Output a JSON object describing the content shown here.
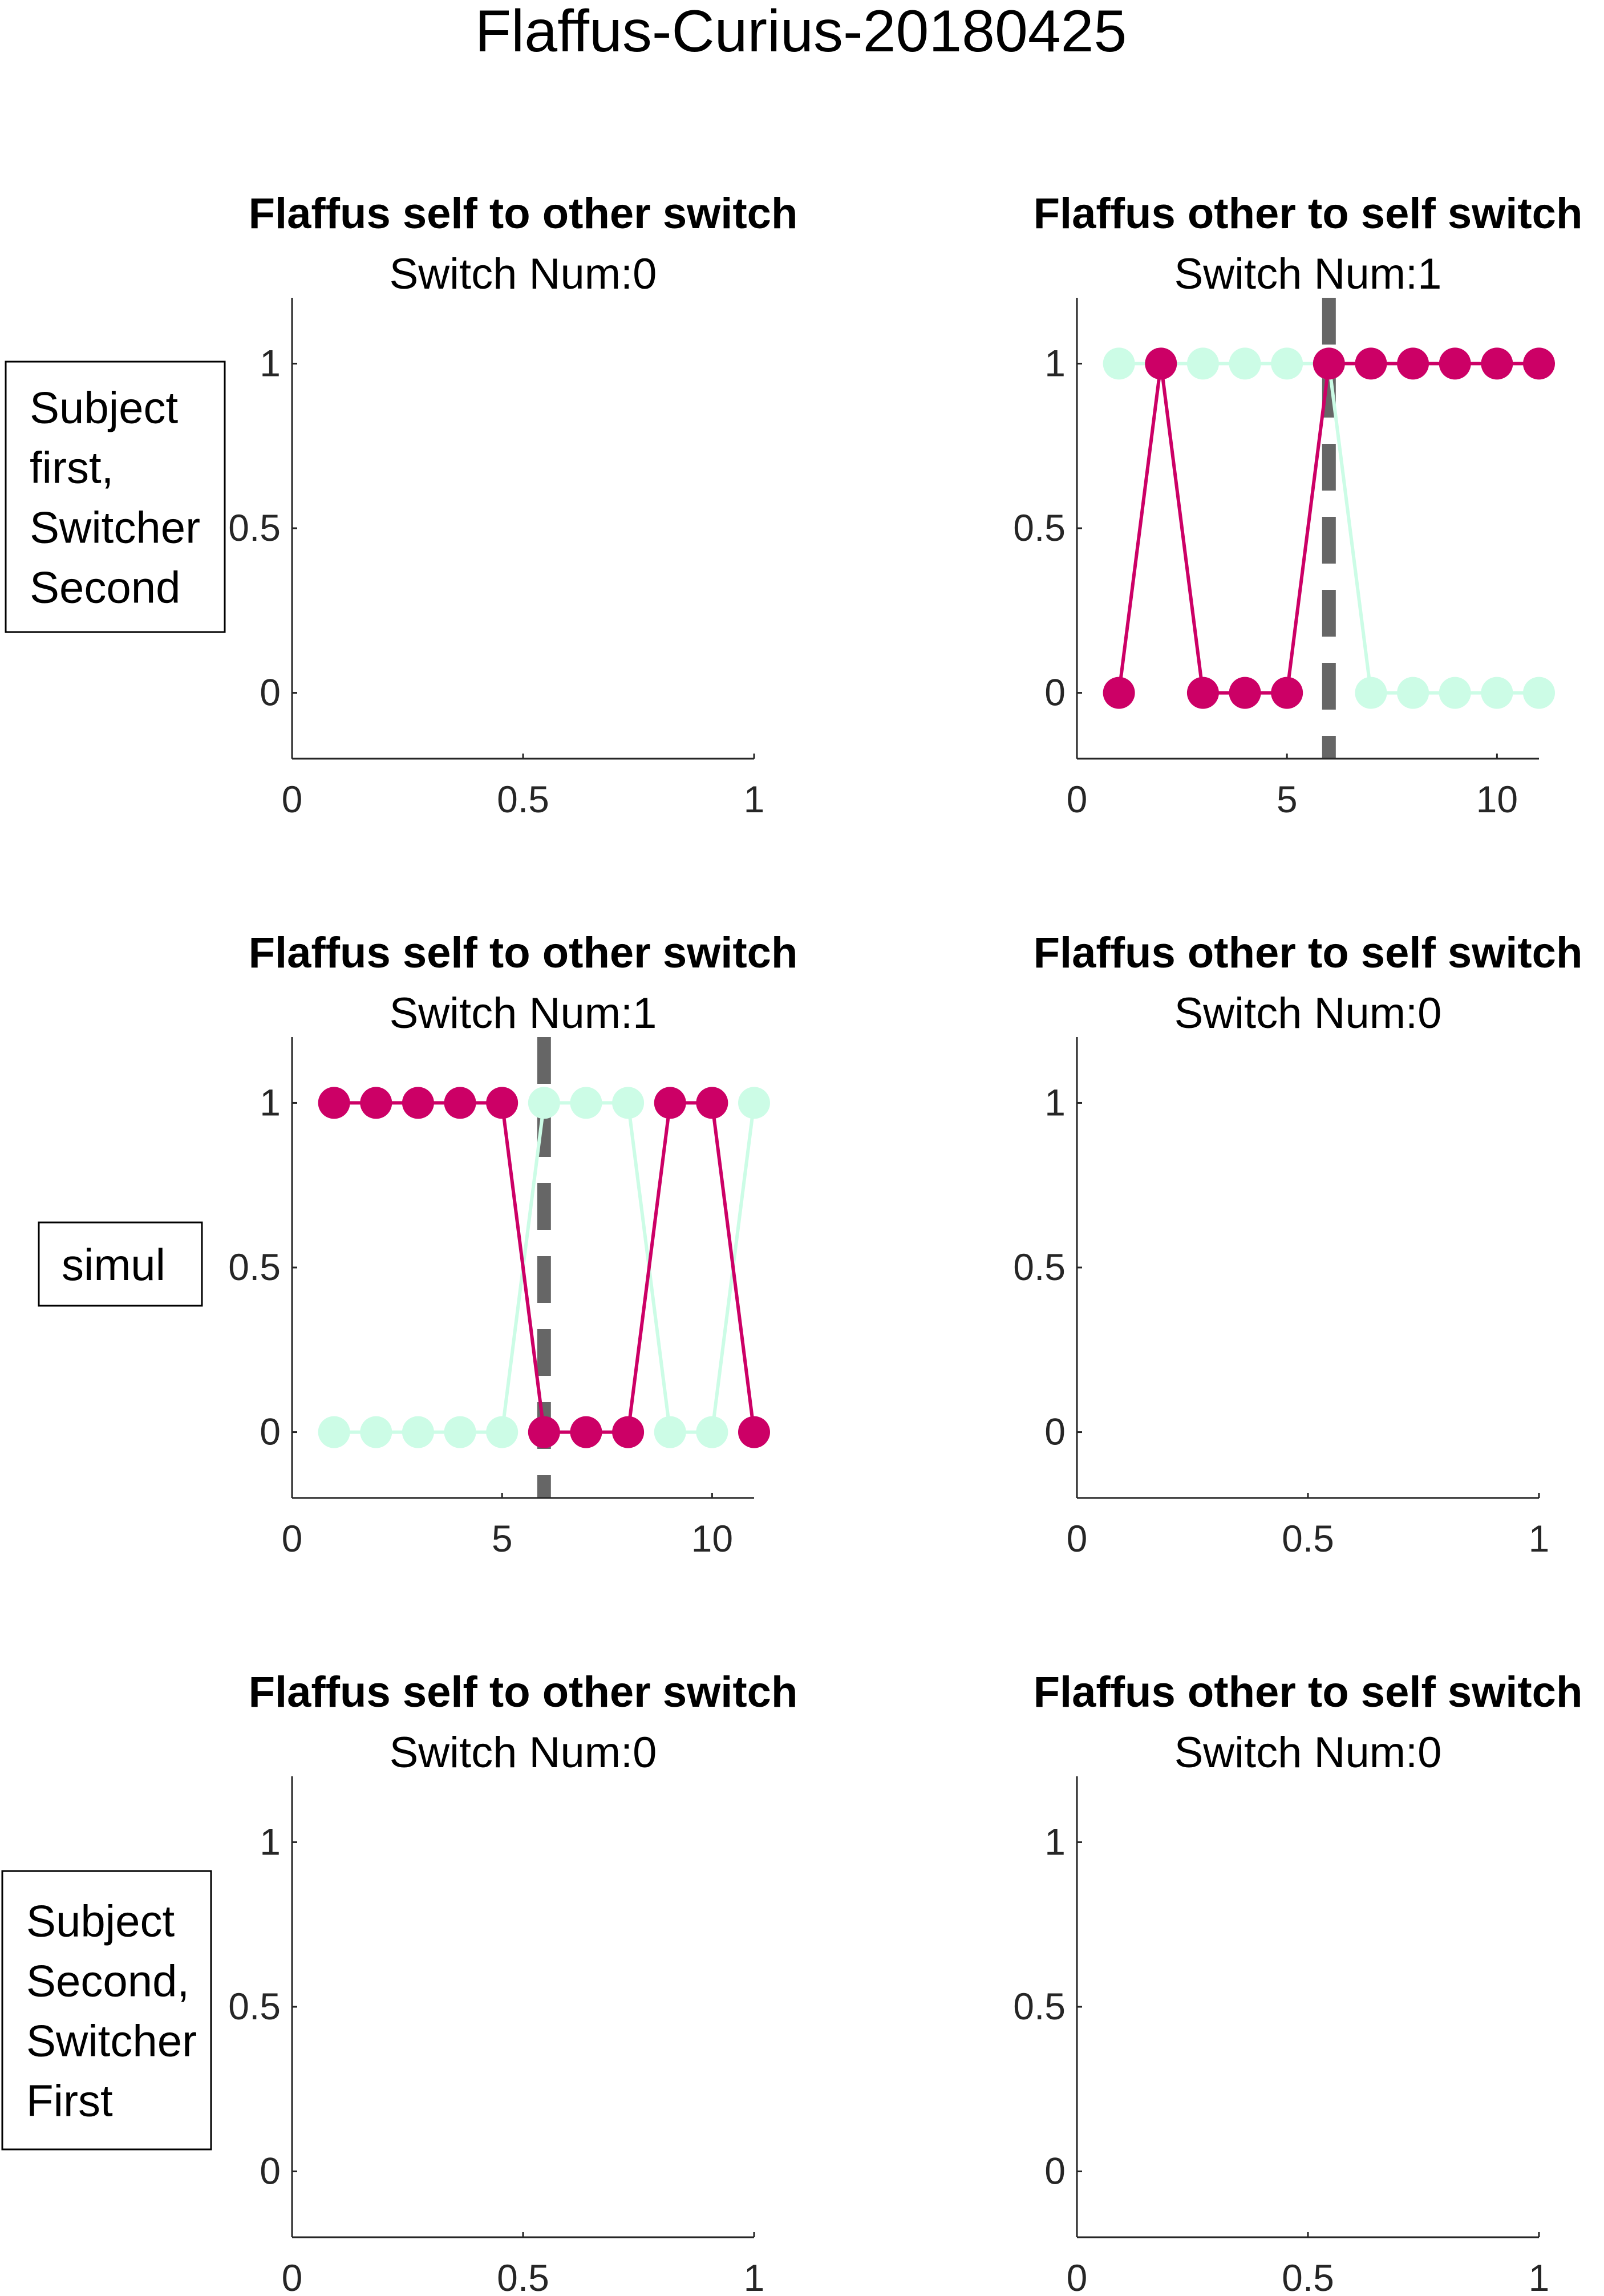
{
  "figure_title": "Flaffus-Curius-20180425",
  "colors": {
    "subject": "#cc0066",
    "partner": "#ccfce6",
    "switch_line": "#666666",
    "axis": "#262626"
  },
  "row_labels": [
    [
      "Subject",
      "first,",
      "Switcher",
      "Second"
    ],
    [
      "simul"
    ],
    [
      "Subject",
      "Second,",
      "Switcher",
      "First"
    ]
  ],
  "chart_data": [
    {
      "type": "line",
      "title": "Flaffus self to other switch",
      "subtitle": "Switch Num:0",
      "xlim": [
        0,
        1
      ],
      "ylim": [
        -0.2,
        1.2
      ],
      "xticks": [
        "0",
        "0.5",
        "1"
      ],
      "xtick_values": [
        0,
        0.5,
        1
      ],
      "yticks": [
        "0",
        "0.5",
        "1"
      ],
      "ytick_values": [
        0,
        0.5,
        1
      ],
      "series": []
    },
    {
      "type": "line",
      "title": "Flaffus other to self switch",
      "subtitle": "Switch Num:1",
      "xlim": [
        0,
        11
      ],
      "ylim": [
        -0.2,
        1.2
      ],
      "xticks": [
        "0",
        "5",
        "10"
      ],
      "xtick_values": [
        0,
        5,
        10
      ],
      "yticks": [
        "0",
        "0.5",
        "1"
      ],
      "ytick_values": [
        0,
        0.5,
        1
      ],
      "switch_x": 6,
      "series": [
        {
          "color": "#ccfce6",
          "x": [
            1,
            2,
            3,
            4,
            5,
            6,
            7,
            8,
            9,
            10,
            11
          ],
          "y": [
            1,
            1,
            1,
            1,
            1,
            1,
            0,
            0,
            0,
            0,
            0
          ]
        },
        {
          "color": "#cc0066",
          "x": [
            1,
            2,
            3,
            4,
            5,
            6,
            7,
            8,
            9,
            10,
            11
          ],
          "y": [
            0,
            1,
            0,
            0,
            0,
            1,
            1,
            1,
            1,
            1,
            1
          ]
        }
      ]
    },
    {
      "type": "line",
      "title": "Flaffus self to other switch",
      "subtitle": "Switch Num:1",
      "xlim": [
        0,
        11
      ],
      "ylim": [
        -0.2,
        1.2
      ],
      "xticks": [
        "0",
        "5",
        "10"
      ],
      "xtick_values": [
        0,
        5,
        10
      ],
      "yticks": [
        "0",
        "0.5",
        "1"
      ],
      "ytick_values": [
        0,
        0.5,
        1
      ],
      "switch_x": 6,
      "series": [
        {
          "color": "#ccfce6",
          "x": [
            1,
            2,
            3,
            4,
            5,
            6,
            7,
            8,
            9,
            10,
            11
          ],
          "y": [
            0,
            0,
            0,
            0,
            0,
            1,
            1,
            1,
            0,
            0,
            1
          ]
        },
        {
          "color": "#cc0066",
          "x": [
            1,
            2,
            3,
            4,
            5,
            6,
            7,
            8,
            9,
            10,
            11
          ],
          "y": [
            1,
            1,
            1,
            1,
            1,
            0,
            0,
            0,
            1,
            1,
            0
          ]
        }
      ]
    },
    {
      "type": "line",
      "title": "Flaffus other to self switch",
      "subtitle": "Switch Num:0",
      "xlim": [
        0,
        1
      ],
      "ylim": [
        -0.2,
        1.2
      ],
      "xticks": [
        "0",
        "0.5",
        "1"
      ],
      "xtick_values": [
        0,
        0.5,
        1
      ],
      "yticks": [
        "0",
        "0.5",
        "1"
      ],
      "ytick_values": [
        0,
        0.5,
        1
      ],
      "series": []
    },
    {
      "type": "line",
      "title": "Flaffus self to other switch",
      "subtitle": "Switch Num:0",
      "xlim": [
        0,
        1
      ],
      "ylim": [
        -0.2,
        1.2
      ],
      "xticks": [
        "0",
        "0.5",
        "1"
      ],
      "xtick_values": [
        0,
        0.5,
        1
      ],
      "yticks": [
        "0",
        "0.5",
        "1"
      ],
      "ytick_values": [
        0,
        0.5,
        1
      ],
      "series": []
    },
    {
      "type": "line",
      "title": "Flaffus other to self switch",
      "subtitle": "Switch Num:0",
      "xlim": [
        0,
        1
      ],
      "ylim": [
        -0.2,
        1.2
      ],
      "xticks": [
        "0",
        "0.5",
        "1"
      ],
      "xtick_values": [
        0,
        0.5,
        1
      ],
      "yticks": [
        "0",
        "0.5",
        "1"
      ],
      "ytick_values": [
        0,
        0.5,
        1
      ],
      "series": []
    }
  ]
}
